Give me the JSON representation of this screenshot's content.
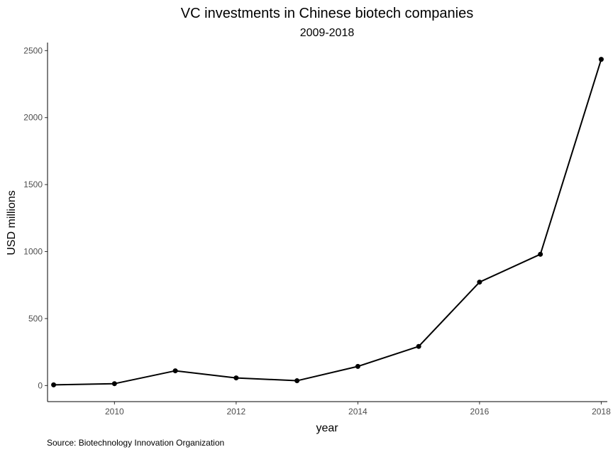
{
  "chart_data": {
    "type": "line",
    "title": "VC investments in Chinese biotech companies",
    "subtitle": "2009-2018",
    "xlabel": "year",
    "ylabel": "USD millions",
    "caption": "Source: Biotechnology Innovation Organization",
    "x": [
      2009,
      2010,
      2011,
      2012,
      2013,
      2014,
      2015,
      2016,
      2017,
      2018
    ],
    "series": [
      {
        "values": [
          5,
          14,
          110,
          57,
          36,
          143,
          292,
          772,
          980,
          2435
        ]
      }
    ],
    "xlim": [
      2008.9,
      2018.1
    ],
    "ylim": [
      -120,
      2560
    ],
    "x_ticks": [
      2010,
      2012,
      2014,
      2016,
      2018
    ],
    "y_ticks": [
      0,
      500,
      1000,
      1500,
      2000,
      2500
    ],
    "grid": false,
    "legend": "none",
    "colors": {
      "line": "#000000",
      "axis": "#000000",
      "tick_text": "#4d4d4d"
    }
  }
}
